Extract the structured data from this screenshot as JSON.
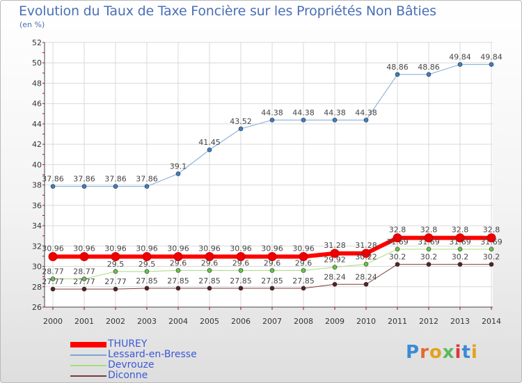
{
  "header": {
    "title": "Evolution du Taux de Taxe Foncière sur les Propriétés Non Bâties",
    "unit": "(en %)"
  },
  "logo": {
    "text": "Proxiti"
  },
  "chart_data": {
    "type": "line",
    "ylim": [
      26,
      52
    ],
    "yticks": [
      26,
      28,
      30,
      32,
      34,
      36,
      38,
      40,
      42,
      44,
      46,
      48,
      50,
      52
    ],
    "x": [
      "2000",
      "2001",
      "2002",
      "2003",
      "2004",
      "2005",
      "2006",
      "2007",
      "2008",
      "2009",
      "2010",
      "2011",
      "2012",
      "2013",
      "2014"
    ],
    "grid": true,
    "legend_position": "bottom-left",
    "series": [
      {
        "name": "Lessard-en-Bresse",
        "color": "#7ba7d4",
        "marker": "#3d7fc4",
        "width": 1,
        "values": [
          37.86,
          37.86,
          37.86,
          37.86,
          39.1,
          41.45,
          43.52,
          44.38,
          44.38,
          44.38,
          44.38,
          48.86,
          48.86,
          49.84,
          49.84
        ],
        "labels": [
          "37.86",
          "37.86",
          "37.86",
          "37.86",
          "39.1",
          "41.45",
          "43.52",
          "44.38",
          "44.38",
          "44.38",
          "44.38",
          "48.86",
          "48.86",
          "49.84",
          "49.84"
        ]
      },
      {
        "name": "Devrouze",
        "color": "#a5dc7d",
        "marker": "#6cc24a",
        "width": 1,
        "values": [
          28.77,
          28.77,
          29.5,
          29.5,
          29.6,
          29.6,
          29.6,
          29.6,
          29.6,
          29.92,
          30.22,
          31.69,
          31.69,
          31.69,
          31.69
        ],
        "labels": [
          "28.77",
          "28.77",
          "29.5",
          "29.5",
          "29.6",
          "29.6",
          "29.6",
          "29.6",
          "29.6",
          "29.92",
          "30.22",
          "31.69",
          "31.69",
          "31.69",
          "31.69"
        ]
      },
      {
        "name": "Diconne",
        "color": "#7a3a3a",
        "marker": "#5a2020",
        "width": 1,
        "values": [
          27.77,
          27.77,
          27.77,
          27.85,
          27.85,
          27.85,
          27.85,
          27.85,
          27.85,
          28.24,
          28.24,
          30.2,
          30.2,
          30.2,
          30.2
        ],
        "labels": [
          "27.77",
          "27.77",
          "27.77",
          "27.85",
          "27.85",
          "27.85",
          "27.85",
          "27.85",
          "27.85",
          "28.24",
          "28.24",
          "30.2",
          "30.2",
          "30.2",
          "30.2"
        ]
      },
      {
        "name": "THUREY",
        "color": "#ff0000",
        "marker": "#ee0000",
        "width": 6,
        "values": [
          30.96,
          30.96,
          30.96,
          30.96,
          30.96,
          30.96,
          30.96,
          30.96,
          30.96,
          31.28,
          31.28,
          32.8,
          32.8,
          32.8,
          32.8
        ],
        "labels": [
          "30.96",
          "30.96",
          "30.96",
          "30.96",
          "30.96",
          "30.96",
          "30.96",
          "30.96",
          "30.96",
          "31.28",
          "31.28",
          "32.8",
          "32.8",
          "32.8",
          "32.8"
        ]
      }
    ],
    "legend_order": [
      "THUREY",
      "Lessard-en-Bresse",
      "Devrouze",
      "Diconne"
    ]
  }
}
